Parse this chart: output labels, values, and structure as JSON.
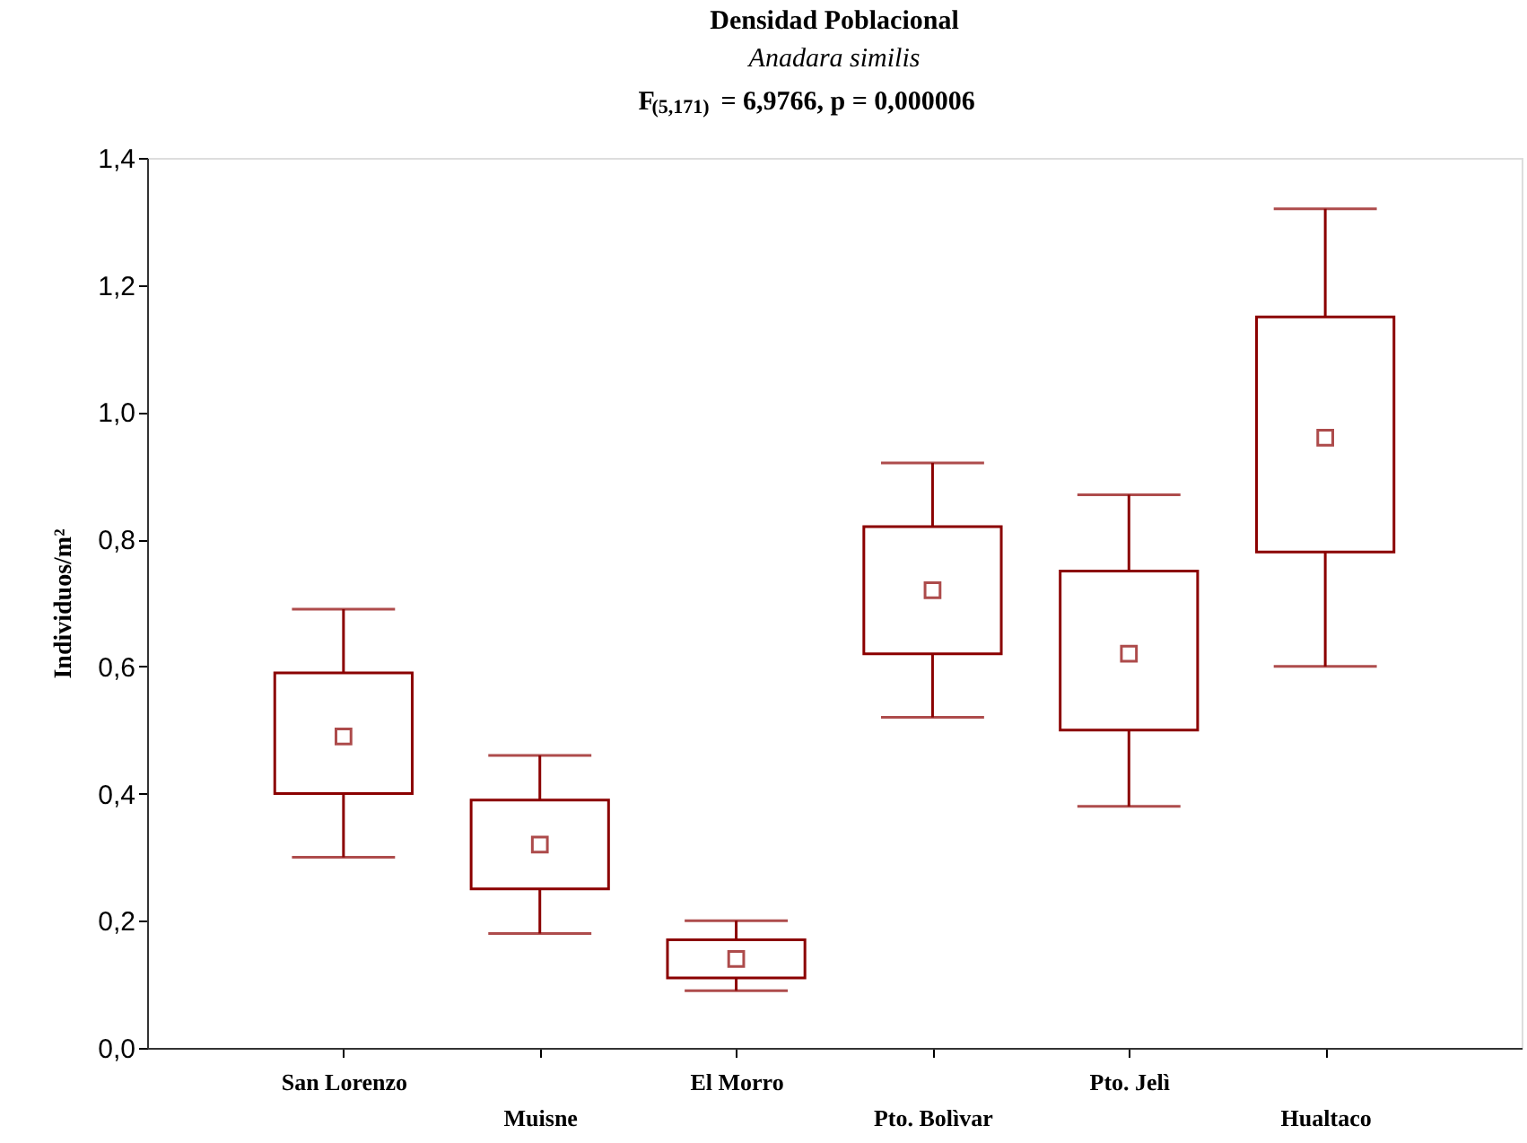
{
  "chart_data": {
    "type": "box",
    "title": "Densidad Poblacional",
    "subtitle": "Anadara similis",
    "annotations": [
      "F$_{(5,171)}$ = 6,9766, p = 0,000006"
    ],
    "ylabel": "Individuos/m²",
    "categories": [
      "San Lorenzo",
      "Muisne",
      "El Morro",
      "Pto. Bolìvar",
      "Pto. Jelì",
      "Hualtaco"
    ],
    "series": [
      {
        "color": "#8b0000",
        "boxes": [
          {
            "low": 0.3,
            "q1": 0.4,
            "median": 0.49,
            "q3": 0.59,
            "high": 0.69
          },
          {
            "low": 0.18,
            "q1": 0.25,
            "median": 0.32,
            "q3": 0.39,
            "high": 0.46
          },
          {
            "low": 0.09,
            "q1": 0.11,
            "median": 0.14,
            "q3": 0.17,
            "high": 0.2
          },
          {
            "low": 0.52,
            "q1": 0.62,
            "median": 0.72,
            "q3": 0.82,
            "high": 0.92
          },
          {
            "low": 0.38,
            "q1": 0.5,
            "median": 0.62,
            "q3": 0.75,
            "high": 0.87
          },
          {
            "low": 0.6,
            "q1": 0.78,
            "median": 0.96,
            "q3": 1.15,
            "high": 1.32
          }
        ]
      }
    ],
    "ylim": [
      0,
      1.4
    ],
    "yticks": [
      {
        "value": 0,
        "label": "0,0"
      },
      {
        "value": 0.2,
        "label": "0,2"
      },
      {
        "value": 0.4,
        "label": "0,4"
      },
      {
        "value": 0.6,
        "label": "0,6"
      },
      {
        "value": 0.8,
        "label": "0,8"
      },
      {
        "value": 1.0,
        "label": "1,0"
      },
      {
        "value": 1.2,
        "label": "1,2"
      },
      {
        "value": 1.4,
        "label": "1,4"
      }
    ],
    "marker": "square",
    "grid": false
  }
}
